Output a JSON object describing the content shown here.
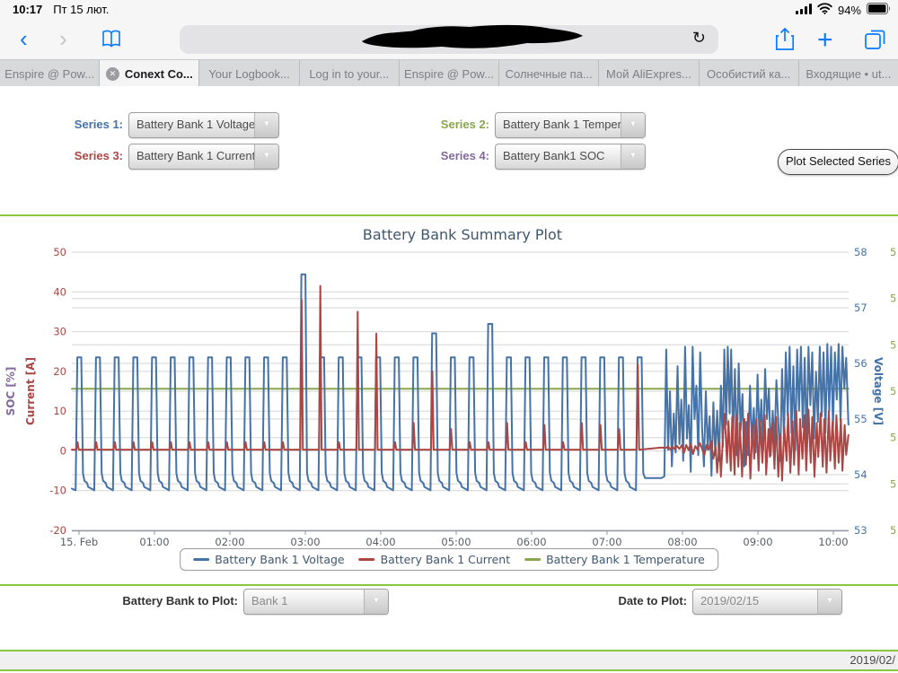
{
  "status_bar": {
    "time": "10:17",
    "date": "Пт 15 лют.",
    "battery_percent": "94%"
  },
  "browser": {
    "tabs": [
      {
        "label": "Enspire @ Pow...",
        "active": false
      },
      {
        "label": "Conext Co...",
        "active": true
      },
      {
        "label": "Your Logbook...",
        "active": false
      },
      {
        "label": "Log in to your...",
        "active": false
      },
      {
        "label": "Enspire @ Pow...",
        "active": false
      },
      {
        "label": "Солнечные па...",
        "active": false
      },
      {
        "label": "Мой AliExpres...",
        "active": false
      },
      {
        "label": "Особистий ка...",
        "active": false
      },
      {
        "label": "Входящие • ut...",
        "active": false
      }
    ]
  },
  "selectors": {
    "series1": {
      "label": "Series 1:",
      "value": "Battery Bank 1 Voltage",
      "color": "#4572A7"
    },
    "series2": {
      "label": "Series 2:",
      "value": "Battery Bank 1 Temperature",
      "color": "#89A54E"
    },
    "series3": {
      "label": "Series 3:",
      "value": "Battery Bank 1 Current",
      "color": "#AA4643"
    },
    "series4": {
      "label": "Series 4:",
      "value": "Battery Bank1 SOC",
      "color": "#80699B"
    }
  },
  "plot_button_label": "Plot Selected Series",
  "bottom_controls": {
    "bank_label": "Battery Bank to Plot:",
    "bank_value": "Bank 1",
    "date_label": "Date to Plot:",
    "date_value": "2019/02/15"
  },
  "footer": {
    "date_text": "2019/02/"
  },
  "chart_data": {
    "type": "line",
    "title": "Battery Bank Summary Plot",
    "title_color": "#3E576F",
    "x_axis": {
      "labels": [
        "15. Feb",
        "01:00",
        "02:00",
        "03:00",
        "04:00",
        "05:00",
        "06:00",
        "07:00",
        "08:00",
        "09:00",
        "10:00"
      ],
      "hours": [
        0,
        1,
        2,
        3,
        4,
        5,
        6,
        7,
        8,
        9,
        10
      ],
      "range_hours": [
        -0.1,
        10.2
      ]
    },
    "axes": {
      "current": {
        "title": "Current [A]",
        "secondary_title": "SOC [%]",
        "secondary_color": "#80699B",
        "labels": [
          50,
          40,
          30,
          20,
          10,
          0,
          -10,
          -20
        ],
        "min": -20,
        "max": 50,
        "color": "#AA4643"
      },
      "voltage": {
        "title": "Voltage [V]",
        "labels": [
          58,
          57,
          56,
          55,
          54,
          53
        ],
        "min": 53,
        "max": 58,
        "color": "#4572A7"
      },
      "temperature": {
        "labels": [
          "5",
          "5",
          "5",
          "5",
          "5",
          "5",
          "5"
        ],
        "color": "#89A54E",
        "note": "labels clipped at screen edge"
      }
    },
    "series": [
      {
        "name": "Battery Bank 1 Temperature",
        "color": "#89A54E",
        "axis": "current",
        "points": [
          [
            -0.095,
            15.6
          ],
          [
            10.2,
            15.6
          ]
        ]
      },
      {
        "name": "Battery Bank 1 Voltage",
        "color": "#4572A7",
        "axis": "voltage",
        "kind": "pulse",
        "train": {
          "start": -0.045,
          "period": 0.2476,
          "count": 31,
          "base": 53.72,
          "peak": 56.11,
          "rise": 0.022,
          "plateau": 0.053,
          "decay": [
            [
              0.097,
              54.03
            ],
            [
              0.117,
              53.89
            ],
            [
              0.152,
              53.85
            ],
            [
              0.167,
              53.78
            ],
            [
              0.235,
              53.73
            ]
          ],
          "last_decay": [
            [
              0.097,
              54.03
            ],
            [
              0.12,
              53.94
            ],
            [
              0.16,
              53.94
            ]
          ],
          "special": {
            "12": 57.6,
            "19": 56.54,
            "22": 56.71
          }
        },
        "lead": [
          [
            -0.095,
            53.75
          ]
        ],
        "post": [
          [
            7.56,
            53.94
          ],
          [
            7.72,
            53.94
          ],
          [
            7.76,
            53.97
          ],
          [
            7.785,
            56.25
          ],
          [
            7.81,
            54.45
          ],
          [
            7.835,
            55.5
          ],
          [
            7.86,
            54.15
          ],
          [
            7.885,
            55.1
          ],
          [
            7.91,
            54.4
          ],
          [
            7.935,
            55.95
          ],
          [
            7.96,
            54.55
          ],
          [
            7.985,
            55.35
          ],
          [
            8.01,
            54.25
          ],
          [
            8.035,
            56.3
          ],
          [
            8.06,
            54.65
          ],
          [
            8.085,
            55.25
          ],
          [
            8.11,
            54.05
          ],
          [
            8.135,
            56.3
          ],
          [
            8.16,
            55.0
          ],
          [
            8.185,
            55.6
          ],
          [
            8.21,
            54.35
          ],
          [
            8.235,
            56.2
          ],
          [
            8.26,
            54.85
          ],
          [
            8.285,
            54.15
          ],
          [
            8.31,
            55.5
          ],
          [
            8.335,
            54.45
          ],
          [
            8.36,
            55.05
          ],
          [
            8.385,
            53.98
          ],
          [
            8.41,
            55.3
          ],
          [
            8.435,
            54.35
          ],
          [
            8.46,
            55.15
          ],
          [
            8.485,
            54.25
          ],
          [
            8.51,
            55.6
          ],
          [
            8.535,
            54.5
          ],
          [
            8.555,
            56.25
          ],
          [
            8.58,
            54.9
          ],
          [
            8.6,
            56.3
          ],
          [
            8.625,
            55.1
          ],
          [
            8.645,
            56.25
          ],
          [
            8.67,
            54.65
          ],
          [
            8.695,
            55.9
          ],
          [
            8.72,
            54.35
          ],
          [
            8.745,
            56.0
          ],
          [
            8.77,
            54.8
          ],
          [
            8.795,
            55.45
          ],
          [
            8.82,
            54.15
          ],
          [
            8.845,
            54.95
          ],
          [
            8.87,
            54.35
          ],
          [
            8.895,
            55.6
          ],
          [
            8.92,
            54.55
          ],
          [
            8.945,
            55.2
          ],
          [
            8.97,
            54.4
          ],
          [
            8.995,
            55.8
          ],
          [
            9.02,
            54.65
          ],
          [
            9.045,
            55.35
          ],
          [
            9.07,
            54.45
          ],
          [
            9.095,
            55.9
          ],
          [
            9.12,
            55.0
          ],
          [
            9.145,
            55.55
          ],
          [
            9.17,
            54.35
          ],
          [
            9.195,
            55.15
          ],
          [
            9.22,
            54.55
          ],
          [
            9.245,
            55.7
          ],
          [
            9.27,
            54.95
          ],
          [
            9.295,
            54.25
          ],
          [
            9.32,
            55.9
          ],
          [
            9.345,
            54.65
          ],
          [
            9.37,
            56.2
          ],
          [
            9.395,
            55.05
          ],
          [
            9.42,
            56.3
          ],
          [
            9.445,
            54.75
          ],
          [
            9.47,
            55.95
          ],
          [
            9.495,
            54.45
          ],
          [
            9.52,
            56.25
          ],
          [
            9.545,
            55.15
          ],
          [
            9.57,
            56.3
          ],
          [
            9.595,
            54.85
          ],
          [
            9.62,
            56.1
          ],
          [
            9.645,
            54.55
          ],
          [
            9.67,
            56.3
          ],
          [
            9.695,
            55.25
          ],
          [
            9.72,
            56.2
          ],
          [
            9.745,
            54.65
          ],
          [
            9.77,
            55.85
          ],
          [
            9.795,
            54.95
          ],
          [
            9.82,
            56.3
          ],
          [
            9.845,
            55.05
          ],
          [
            9.87,
            56.2
          ],
          [
            9.895,
            54.75
          ],
          [
            9.92,
            56.35
          ],
          [
            9.945,
            55.15
          ],
          [
            9.97,
            56.3
          ],
          [
            9.995,
            54.85
          ],
          [
            10.02,
            56.2
          ],
          [
            10.045,
            55.35
          ],
          [
            10.07,
            56.35
          ],
          [
            10.095,
            54.95
          ],
          [
            10.12,
            56.3
          ],
          [
            10.145,
            55.55
          ],
          [
            10.17,
            56.1
          ],
          [
            10.2,
            54.9
          ]
        ]
      },
      {
        "name": "Battery Bank 1 Current",
        "color": "#AA4643",
        "axis": "current",
        "kind": "bump",
        "train": {
          "start": -0.045,
          "period": 0.2476,
          "count": 31,
          "base": 0.3,
          "peak": 2.2,
          "dts": [
            0.008,
            0.025,
            0.042
          ],
          "special": {
            "12": 38,
            "13": 41.5,
            "15": 35,
            "16": 29.5,
            "18": 7,
            "19": 20,
            "20": 5.5,
            "23": 7,
            "25": 6.5,
            "27": 7,
            "28": 6.5,
            "29": 5.5,
            "30": 21.7
          }
        },
        "lead": [
          [
            -0.095,
            0.3
          ]
        ],
        "post": [
          [
            7.46,
            0.35
          ],
          [
            7.6,
            0.6
          ],
          [
            7.72,
            0.85
          ],
          [
            7.78,
            0.7
          ],
          [
            7.81,
            1.1
          ],
          [
            7.84,
            0.3
          ],
          [
            7.87,
            1.0
          ],
          [
            7.9,
            0.4
          ],
          [
            7.93,
            1.2
          ],
          [
            7.96,
            0.5
          ],
          [
            7.99,
            1.4
          ],
          [
            8.02,
            -0.5
          ],
          [
            8.05,
            1.5
          ],
          [
            8.08,
            0.2
          ],
          [
            8.11,
            1.8
          ],
          [
            8.14,
            -0.8
          ],
          [
            8.17,
            1.2
          ],
          [
            8.2,
            0.3
          ],
          [
            8.23,
            2.0
          ],
          [
            8.26,
            0.5
          ],
          [
            8.29,
            -1.0
          ],
          [
            8.32,
            1.5
          ],
          [
            8.35,
            0.4
          ],
          [
            8.38,
            2.4
          ],
          [
            8.41,
            -2.0
          ],
          [
            8.44,
            1.0
          ],
          [
            8.46,
            -5.5
          ],
          [
            8.49,
            2.0
          ],
          [
            8.51,
            -6.5
          ],
          [
            8.54,
            5.0
          ],
          [
            8.56,
            9.3
          ],
          [
            8.59,
            -3.0
          ],
          [
            8.61,
            7.5
          ],
          [
            8.64,
            -5.0
          ],
          [
            8.66,
            8.5
          ],
          [
            8.69,
            -6.0
          ],
          [
            8.71,
            9.0
          ],
          [
            8.74,
            -4.0
          ],
          [
            8.76,
            7.0
          ],
          [
            8.79,
            -6.5
          ],
          [
            8.82,
            8.0
          ],
          [
            8.84,
            -3.5
          ],
          [
            8.87,
            9.4
          ],
          [
            8.9,
            -7.0
          ],
          [
            8.93,
            6.5
          ],
          [
            8.95,
            -2.0
          ],
          [
            8.98,
            8.0
          ],
          [
            9.01,
            -5.0
          ],
          [
            9.03,
            7.5
          ],
          [
            9.06,
            -3.0
          ],
          [
            9.09,
            9.0
          ],
          [
            9.11,
            -6.0
          ],
          [
            9.14,
            5.5
          ],
          [
            9.16,
            -1.5
          ],
          [
            9.19,
            7.0
          ],
          [
            9.22,
            -4.5
          ],
          [
            9.24,
            8.5
          ],
          [
            9.27,
            -6.5
          ],
          [
            9.3,
            4.0
          ],
          [
            9.32,
            -7.5
          ],
          [
            9.35,
            6.0
          ],
          [
            9.38,
            -2.5
          ],
          [
            9.4,
            9.5
          ],
          [
            9.43,
            -5.5
          ],
          [
            9.46,
            7.5
          ],
          [
            9.48,
            -3.5
          ],
          [
            9.51,
            10.0
          ],
          [
            9.54,
            -6.0
          ],
          [
            9.56,
            8.0
          ],
          [
            9.59,
            -2.0
          ],
          [
            9.62,
            9.0
          ],
          [
            9.64,
            -5.0
          ],
          [
            9.67,
            10.4
          ],
          [
            9.7,
            -3.0
          ],
          [
            9.72,
            8.5
          ],
          [
            9.75,
            -6.5
          ],
          [
            9.78,
            7.0
          ],
          [
            9.8,
            -1.5
          ],
          [
            9.83,
            9.5
          ],
          [
            9.86,
            -4.0
          ],
          [
            9.88,
            8.0
          ],
          [
            9.91,
            -5.5
          ],
          [
            9.94,
            10.0
          ],
          [
            9.96,
            -2.5
          ],
          [
            9.99,
            7.5
          ],
          [
            10.02,
            -4.5
          ],
          [
            10.04,
            9.0
          ],
          [
            10.07,
            -3.0
          ],
          [
            10.1,
            8.0
          ],
          [
            10.12,
            -5.0
          ],
          [
            10.15,
            6.5
          ],
          [
            10.17,
            -1.0
          ],
          [
            10.2,
            4.0
          ]
        ]
      }
    ],
    "legend": [
      "Battery Bank 1 Voltage",
      "Battery Bank 1 Current",
      "Battery Bank 1 Temperature"
    ],
    "layout": {
      "grid": true,
      "legend_position": "bottom-center"
    }
  }
}
